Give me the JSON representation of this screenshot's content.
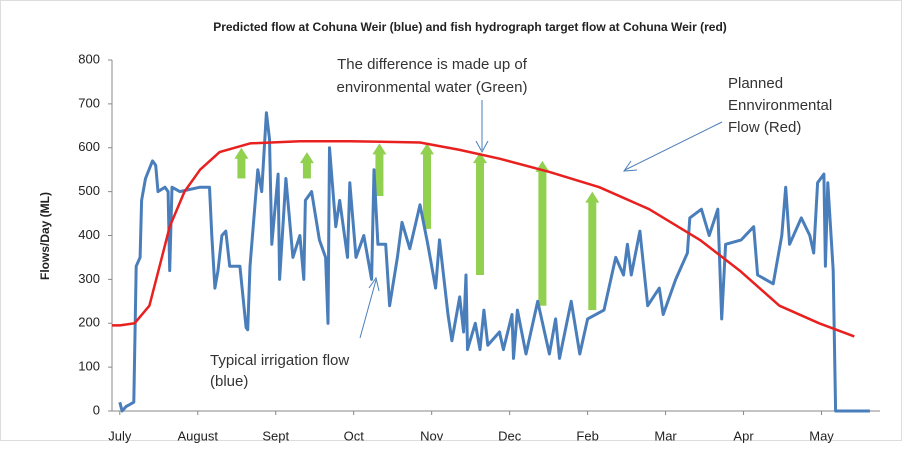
{
  "chart_data": {
    "type": "line",
    "title": "Predicted flow at Cohuna  Weir (blue) and fish hydrograph  target flow at Cohuna  Weir (red)",
    "y_label": "Flows/Day (ML)",
    "xlim": [
      -0.1,
      9.75
    ],
    "xticks": [
      {
        "value": 0,
        "label": "July"
      },
      {
        "value": 1,
        "label": "August"
      },
      {
        "value": 2,
        "label": "Sept"
      },
      {
        "value": 3,
        "label": "Oct"
      },
      {
        "value": 4,
        "label": "Nov"
      },
      {
        "value": 5,
        "label": "Dec"
      },
      {
        "value": 6,
        "label": "Feb"
      },
      {
        "value": 7,
        "label": "Mar"
      },
      {
        "value": 8,
        "label": "Apr"
      },
      {
        "value": 9,
        "label": "May"
      }
    ],
    "ylim": [
      0,
      800
    ],
    "yticks": [
      0,
      100,
      200,
      300,
      400,
      500,
      600,
      700,
      800
    ],
    "series": [
      {
        "color": "#4a7ebb",
        "x": [
          0,
          0.03,
          0.08,
          0.18,
          0.21,
          0.26,
          0.28,
          0.33,
          0.42,
          0.46,
          0.49,
          0.58,
          0.62,
          0.64,
          0.67,
          0.77,
          1.03,
          1.15,
          1.18,
          1.22,
          1.26,
          1.31,
          1.36,
          1.41,
          1.54,
          1.62,
          1.64,
          1.67,
          1.77,
          1.82,
          1.88,
          1.92,
          1.95,
          2.03,
          2.05,
          2.13,
          2.22,
          2.31,
          2.36,
          2.38,
          2.46,
          2.56,
          2.64,
          2.67,
          2.69,
          2.77,
          2.82,
          2.92,
          2.95,
          3.03,
          3.13,
          3.23,
          3.26,
          3.31,
          3.41,
          3.46,
          3.56,
          3.62,
          3.72,
          3.85,
          3.95,
          4.05,
          4.1,
          4.21,
          4.26,
          4.36,
          4.41,
          4.44,
          4.46,
          4.56,
          4.62,
          4.67,
          4.72,
          4.87,
          4.92,
          5.03,
          5.05,
          5.1,
          5.21,
          5.36,
          5.51,
          5.59,
          5.64,
          5.79,
          5.9,
          6,
          6.21,
          6.36,
          6.46,
          6.51,
          6.56,
          6.67,
          6.77,
          6.92,
          6.97,
          7.13,
          7.28,
          7.31,
          7.46,
          7.56,
          7.67,
          7.72,
          7.77,
          7.97,
          8.13,
          8.18,
          8.38,
          8.49,
          8.54,
          8.59,
          8.74,
          8.85,
          8.9,
          8.95,
          9.03,
          9.05,
          9.08,
          9.15,
          9.18,
          9.62
        ],
        "values": [
          20,
          0,
          10,
          20,
          330,
          350,
          480,
          530,
          570,
          560,
          500,
          510,
          500,
          320,
          510,
          500,
          510,
          510,
          400,
          280,
          320,
          400,
          410,
          330,
          330,
          190,
          185,
          330,
          550,
          500,
          680,
          620,
          380,
          540,
          300,
          530,
          350,
          400,
          300,
          480,
          500,
          390,
          350,
          200,
          600,
          420,
          480,
          350,
          520,
          350,
          400,
          300,
          550,
          380,
          380,
          240,
          350,
          430,
          370,
          470,
          380,
          280,
          390,
          220,
          160,
          260,
          180,
          310,
          140,
          200,
          140,
          230,
          150,
          180,
          140,
          220,
          120,
          230,
          130,
          250,
          130,
          210,
          120,
          250,
          130,
          210,
          230,
          350,
          310,
          380,
          310,
          410,
          240,
          280,
          220,
          300,
          360,
          440,
          460,
          400,
          460,
          210,
          380,
          390,
          420,
          310,
          290,
          400,
          510,
          380,
          440,
          400,
          360,
          520,
          540,
          330,
          520,
          320,
          0,
          0
        ]
      },
      {
        "color": "#e8201f",
        "x": [
          -0.1,
          0,
          0.19,
          0.38,
          0.51,
          0.64,
          0.83,
          1.03,
          1.28,
          1.67,
          2.31,
          2.95,
          3.85,
          4.36,
          4.87,
          5.51,
          6.15,
          6.79,
          7.44,
          7.95,
          8.46,
          8.97,
          9.42
        ],
        "values": [
          195,
          195,
          200,
          240,
          330,
          420,
          500,
          550,
          590,
          610,
          615,
          615,
          612,
          595,
          575,
          545,
          510,
          460,
          390,
          320,
          240,
          200,
          170
        ]
      }
    ],
    "arrows": {
      "color": "#92d050",
      "x": [
        1.56,
        2.4,
        3.33,
        3.94,
        4.62,
        5.42,
        6.06
      ],
      "from": [
        530,
        530,
        490,
        415,
        310,
        240,
        230
      ],
      "to": [
        600,
        590,
        610,
        610,
        590,
        570,
        500
      ]
    },
    "annotations": [
      {
        "lines": [
          "The difference is made up of",
          "environmental water (Green)"
        ]
      },
      {
        "lines": [
          "Planned",
          "Ennvironmental",
          "Flow (Red)"
        ]
      },
      {
        "lines": [
          "Typical irrigation flow",
          "(blue)"
        ]
      }
    ]
  }
}
